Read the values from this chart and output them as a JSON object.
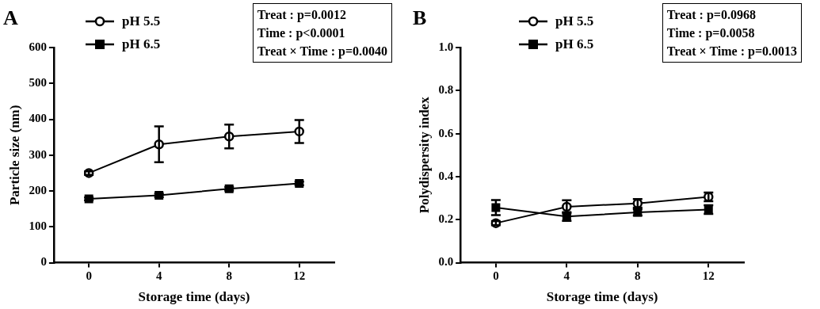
{
  "chart_data": [
    {
      "type": "line",
      "title": "A",
      "xlabel": "Storage time (days)",
      "ylabel": "Particle size (nm)",
      "x": [
        0,
        4,
        8,
        12
      ],
      "xlim": [
        -2,
        14
      ],
      "xticks": [
        0,
        4,
        8,
        12
      ],
      "ylim": [
        0,
        600
      ],
      "yticks": [
        0,
        100,
        200,
        300,
        400,
        500,
        600
      ],
      "grid": false,
      "legend": "top left",
      "annotations": [
        "Treat : p=0.0012",
        "Time :  p<0.0001",
        "Treat × Time :  p=0.0040"
      ],
      "series": [
        {
          "name": "pH 5.5",
          "color": "#000000",
          "marker": "circle",
          "values": [
            250,
            330,
            352,
            366
          ],
          "errors": [
            5,
            50,
            33,
            32
          ]
        },
        {
          "name": "pH 6.5",
          "color": "#000000",
          "marker": "square",
          "values": [
            178,
            188,
            206,
            221
          ],
          "errors": [
            4,
            5,
            5,
            5
          ]
        }
      ]
    },
    {
      "type": "line",
      "title": "B",
      "xlabel": "Storage time (days)",
      "ylabel": "Polydispersity index",
      "x": [
        0,
        4,
        8,
        12
      ],
      "xlim": [
        -2,
        14
      ],
      "xticks": [
        0,
        4,
        8,
        12
      ],
      "ylim": [
        0,
        1
      ],
      "yticks": [
        {
          "value": 0,
          "label": "0.0"
        },
        0.2,
        0.4,
        0.6,
        0.8,
        {
          "value": 1,
          "label": "1.0"
        }
      ],
      "grid": false,
      "legend": "top left",
      "annotations": [
        "Treat : p=0.0968",
        "Time :  p=0.0058",
        "Treat × Time :  p=0.0013"
      ],
      "series": [
        {
          "name": "pH 5.5",
          "color": "#000000",
          "marker": "circle",
          "values": [
            0.184,
            0.26,
            0.276,
            0.306
          ],
          "errors": [
            0.01,
            0.03,
            0.02,
            0.02
          ]
        },
        {
          "name": "pH 6.5",
          "color": "#000000",
          "marker": "square",
          "values": [
            0.256,
            0.215,
            0.234,
            0.247
          ],
          "errors": [
            0.035,
            0.02,
            0.015,
            0.02
          ]
        }
      ]
    }
  ]
}
